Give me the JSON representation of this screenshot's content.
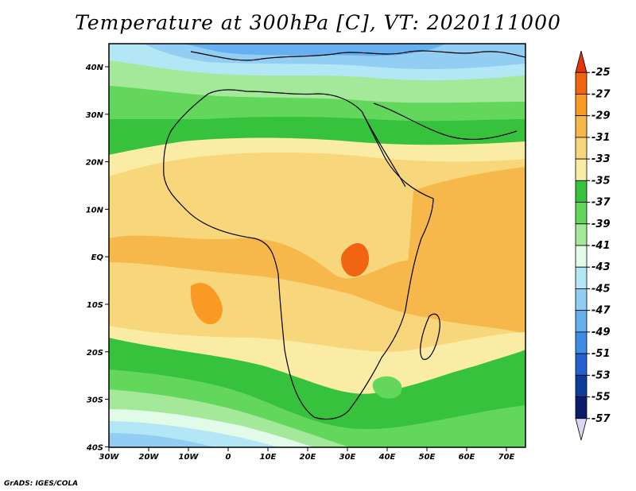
{
  "title": "Temperature at 300hPa [C], VT: 2020111000",
  "credit": "GrADS: IGES/COLA",
  "map": {
    "lon_ticks": [
      "30W",
      "20W",
      "10W",
      "0",
      "10E",
      "20E",
      "30E",
      "40E",
      "50E",
      "60E",
      "70E"
    ],
    "lat_ticks": [
      "40N",
      "30N",
      "20N",
      "10N",
      "EQ",
      "10S",
      "20S",
      "30S",
      "40S"
    ],
    "lon_range": [
      -30,
      75
    ],
    "lat_range": [
      -40,
      45
    ]
  },
  "colorbar": {
    "labels": [
      "-25",
      "-27",
      "-29",
      "-31",
      "-33",
      "-35",
      "-37",
      "-39",
      "-41",
      "-43",
      "-45",
      "-47",
      "-49",
      "-51",
      "-53",
      "-55",
      "-57"
    ],
    "colors": [
      "#e5340e",
      "#f06412",
      "#f99a24",
      "#f6b84a",
      "#f8d77c",
      "#fbeca5",
      "#36c23c",
      "#63d75b",
      "#a4e899",
      "#e2fbe9",
      "#b3e7f5",
      "#92cdf3",
      "#67b0ef",
      "#3e8de5",
      "#2561cd",
      "#0e3c9c",
      "#0b1c6c",
      "#d8d6f2"
    ]
  }
}
